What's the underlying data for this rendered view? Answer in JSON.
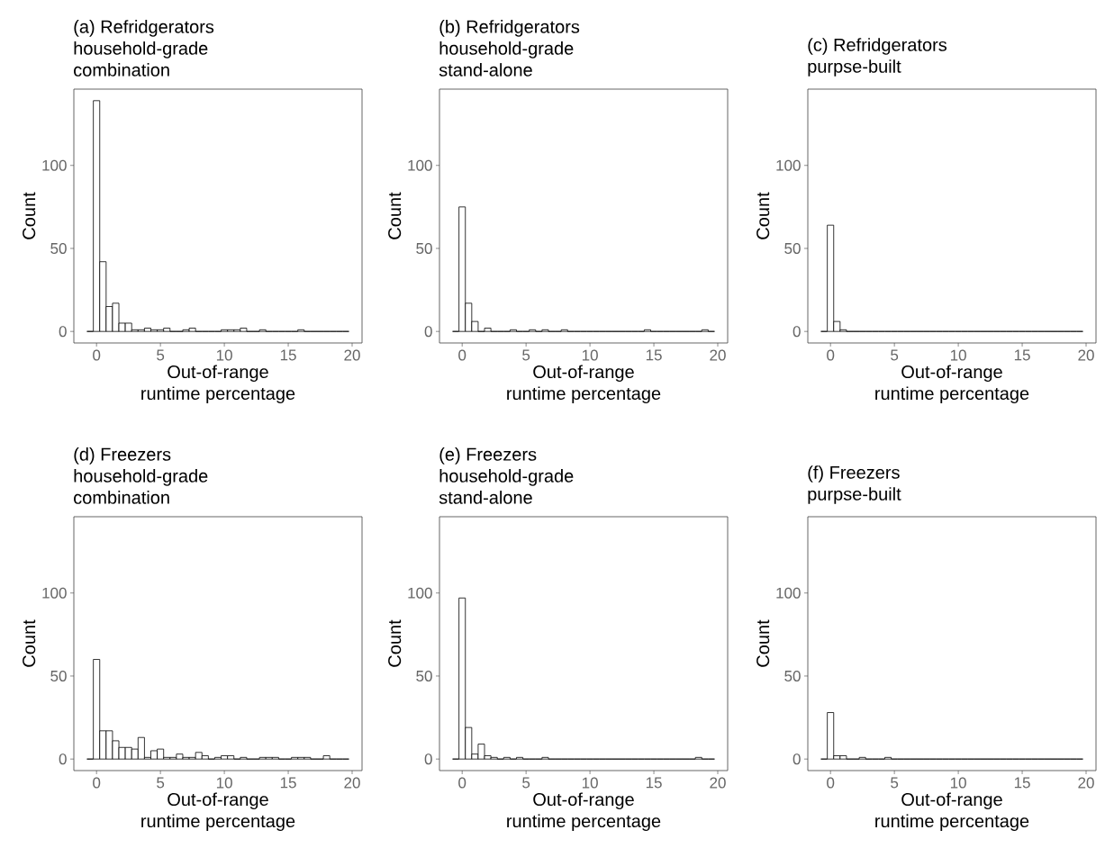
{
  "chart_data": [
    {
      "type": "histogram",
      "title": "(a) Refridgerators",
      "subtitle": "household-grade combination",
      "xlabel": "Out-of-range runtime percentage",
      "ylabel": "Count",
      "bins": [
        -0.75,
        -0.25,
        0.25,
        0.75,
        1.25,
        1.75,
        2.25,
        2.75,
        3.25,
        3.75,
        4.25,
        4.75,
        5.25,
        5.75,
        6.25,
        6.75,
        7.25,
        7.75,
        8.25,
        8.75,
        9.25,
        9.75,
        10.25,
        10.75,
        11.25,
        11.75,
        12.25,
        12.75,
        13.25,
        13.75,
        14.25,
        14.75,
        15.25,
        15.75,
        16.25,
        16.75,
        17.25,
        17.75,
        18.25,
        18.75,
        19.25,
        19.75
      ],
      "values": [
        0,
        139,
        42,
        15,
        17,
        5,
        5,
        1,
        1,
        2,
        1,
        1,
        2,
        0,
        0,
        1,
        2,
        0,
        0,
        0,
        0,
        1,
        1,
        1,
        2,
        0,
        0,
        1,
        0,
        0,
        0,
        0,
        0,
        1,
        0,
        0,
        0,
        0,
        0,
        0,
        0
      ],
      "xlim": [
        -1.775,
        20.775
      ],
      "ylim": [
        -6.95,
        145.95
      ],
      "xticks": [
        0,
        5,
        10,
        15,
        20
      ],
      "yticks": [
        0,
        50,
        100
      ]
    },
    {
      "type": "histogram",
      "title": "(b) Refridgerators",
      "subtitle": "household-grade stand-alone",
      "xlabel": "Out-of-range runtime percentage",
      "ylabel": "Count",
      "bins": [
        -0.75,
        -0.25,
        0.25,
        0.75,
        1.25,
        1.75,
        2.25,
        2.75,
        3.25,
        3.75,
        4.25,
        4.75,
        5.25,
        5.75,
        6.25,
        6.75,
        7.25,
        7.75,
        8.25,
        8.75,
        9.25,
        9.75,
        10.25,
        10.75,
        11.25,
        11.75,
        12.25,
        12.75,
        13.25,
        13.75,
        14.25,
        14.75,
        15.25,
        15.75,
        16.25,
        16.75,
        17.25,
        17.75,
        18.25,
        18.75,
        19.25,
        19.75
      ],
      "values": [
        0,
        75,
        17,
        6,
        0,
        2,
        0,
        0,
        0,
        1,
        0,
        0,
        1,
        0,
        1,
        0,
        0,
        1,
        0,
        0,
        0,
        0,
        0,
        0,
        0,
        0,
        0,
        0,
        0,
        0,
        1,
        0,
        0,
        0,
        0,
        0,
        0,
        0,
        0,
        1,
        0
      ],
      "xlim": [
        -1.775,
        20.775
      ],
      "ylim": [
        -6.95,
        145.95
      ],
      "xticks": [
        0,
        5,
        10,
        15,
        20
      ],
      "yticks": [
        0,
        50,
        100
      ]
    },
    {
      "type": "histogram",
      "title": "(c) Refridgerators",
      "subtitle": "purpse-built",
      "xlabel": "Out-of-range runtime percentage",
      "ylabel": "Count",
      "bins": [
        -0.75,
        -0.25,
        0.25,
        0.75,
        1.25,
        1.75,
        2.25,
        2.75,
        3.25,
        3.75,
        4.25,
        4.75,
        5.25,
        5.75,
        6.25,
        6.75,
        7.25,
        7.75,
        8.25,
        8.75,
        9.25,
        9.75,
        10.25,
        10.75,
        11.25,
        11.75,
        12.25,
        12.75,
        13.25,
        13.75,
        14.25,
        14.75,
        15.25,
        15.75,
        16.25,
        16.75,
        17.25,
        17.75,
        18.25,
        18.75,
        19.25,
        19.75
      ],
      "values": [
        0,
        64,
        6,
        1,
        0,
        0,
        0,
        0,
        0,
        0,
        0,
        0,
        0,
        0,
        0,
        0,
        0,
        0,
        0,
        0,
        0,
        0,
        0,
        0,
        0,
        0,
        0,
        0,
        0,
        0,
        0,
        0,
        0,
        0,
        0,
        0,
        0,
        0,
        0,
        0,
        0
      ],
      "xlim": [
        -1.775,
        20.775
      ],
      "ylim": [
        -6.95,
        145.95
      ],
      "xticks": [
        0,
        5,
        10,
        15,
        20
      ],
      "yticks": [
        0,
        50,
        100
      ]
    },
    {
      "type": "histogram",
      "title": "(d) Freezers",
      "subtitle": "household-grade combination",
      "xlabel": "Out-of-range runtime percentage",
      "ylabel": "Count",
      "bins": [
        -0.75,
        -0.25,
        0.25,
        0.75,
        1.25,
        1.75,
        2.25,
        2.75,
        3.25,
        3.75,
        4.25,
        4.75,
        5.25,
        5.75,
        6.25,
        6.75,
        7.25,
        7.75,
        8.25,
        8.75,
        9.25,
        9.75,
        10.25,
        10.75,
        11.25,
        11.75,
        12.25,
        12.75,
        13.25,
        13.75,
        14.25,
        14.75,
        15.25,
        15.75,
        16.25,
        16.75,
        17.25,
        17.75,
        18.25,
        18.75,
        19.25,
        19.75
      ],
      "values": [
        0,
        60,
        17,
        17,
        11,
        7,
        7,
        6,
        13,
        1,
        5,
        6,
        1,
        1,
        3,
        1,
        1,
        4,
        2,
        0,
        1,
        2,
        2,
        0,
        1,
        0,
        0,
        1,
        1,
        1,
        0,
        0,
        1,
        1,
        1,
        0,
        0,
        2,
        0,
        0,
        0
      ],
      "xlim": [
        -1.775,
        20.775
      ],
      "ylim": [
        -6.95,
        145.95
      ],
      "xticks": [
        0,
        5,
        10,
        15,
        20
      ],
      "yticks": [
        0,
        50,
        100
      ]
    },
    {
      "type": "histogram",
      "title": "(e) Freezers",
      "subtitle": "household-grade stand-alone",
      "xlabel": "Out-of-range runtime percentage",
      "ylabel": "Count",
      "bins": [
        -0.75,
        -0.25,
        0.25,
        0.75,
        1.25,
        1.75,
        2.25,
        2.75,
        3.25,
        3.75,
        4.25,
        4.75,
        5.25,
        5.75,
        6.25,
        6.75,
        7.25,
        7.75,
        8.25,
        8.75,
        9.25,
        9.75,
        10.25,
        10.75,
        11.25,
        11.75,
        12.25,
        12.75,
        13.25,
        13.75,
        14.25,
        14.75,
        15.25,
        15.75,
        16.25,
        16.75,
        17.25,
        17.75,
        18.25,
        18.75,
        19.25,
        19.75
      ],
      "values": [
        0,
        97,
        19,
        3,
        9,
        2,
        1,
        0,
        1,
        0,
        1,
        0,
        0,
        0,
        1,
        0,
        0,
        0,
        0,
        0,
        0,
        0,
        0,
        0,
        0,
        0,
        0,
        0,
        0,
        0,
        0,
        0,
        0,
        0,
        0,
        0,
        0,
        0,
        1,
        0,
        0
      ],
      "xlim": [
        -1.775,
        20.775
      ],
      "ylim": [
        -6.95,
        145.95
      ],
      "xticks": [
        0,
        5,
        10,
        15,
        20
      ],
      "yticks": [
        0,
        50,
        100
      ]
    },
    {
      "type": "histogram",
      "title": "(f) Freezers",
      "subtitle": "purpse-built",
      "xlabel": "Out-of-range runtime percentage",
      "ylabel": "Count",
      "bins": [
        -0.75,
        -0.25,
        0.25,
        0.75,
        1.25,
        1.75,
        2.25,
        2.75,
        3.25,
        3.75,
        4.25,
        4.75,
        5.25,
        5.75,
        6.25,
        6.75,
        7.25,
        7.75,
        8.25,
        8.75,
        9.25,
        9.75,
        10.25,
        10.75,
        11.25,
        11.75,
        12.25,
        12.75,
        13.25,
        13.75,
        14.25,
        14.75,
        15.25,
        15.75,
        16.25,
        16.75,
        17.25,
        17.75,
        18.25,
        18.75,
        19.25,
        19.75
      ],
      "values": [
        0,
        28,
        2,
        2,
        0,
        0,
        1,
        0,
        0,
        0,
        1,
        0,
        0,
        0,
        0,
        0,
        0,
        0,
        0,
        0,
        0,
        0,
        0,
        0,
        0,
        0,
        0,
        0,
        0,
        0,
        0,
        0,
        0,
        0,
        0,
        0,
        0,
        0,
        0,
        0,
        0
      ],
      "xlim": [
        -1.775,
        20.775
      ],
      "ylim": [
        -6.95,
        145.95
      ],
      "xticks": [
        0,
        5,
        10,
        15,
        20
      ],
      "yticks": [
        0,
        50,
        100
      ]
    }
  ]
}
